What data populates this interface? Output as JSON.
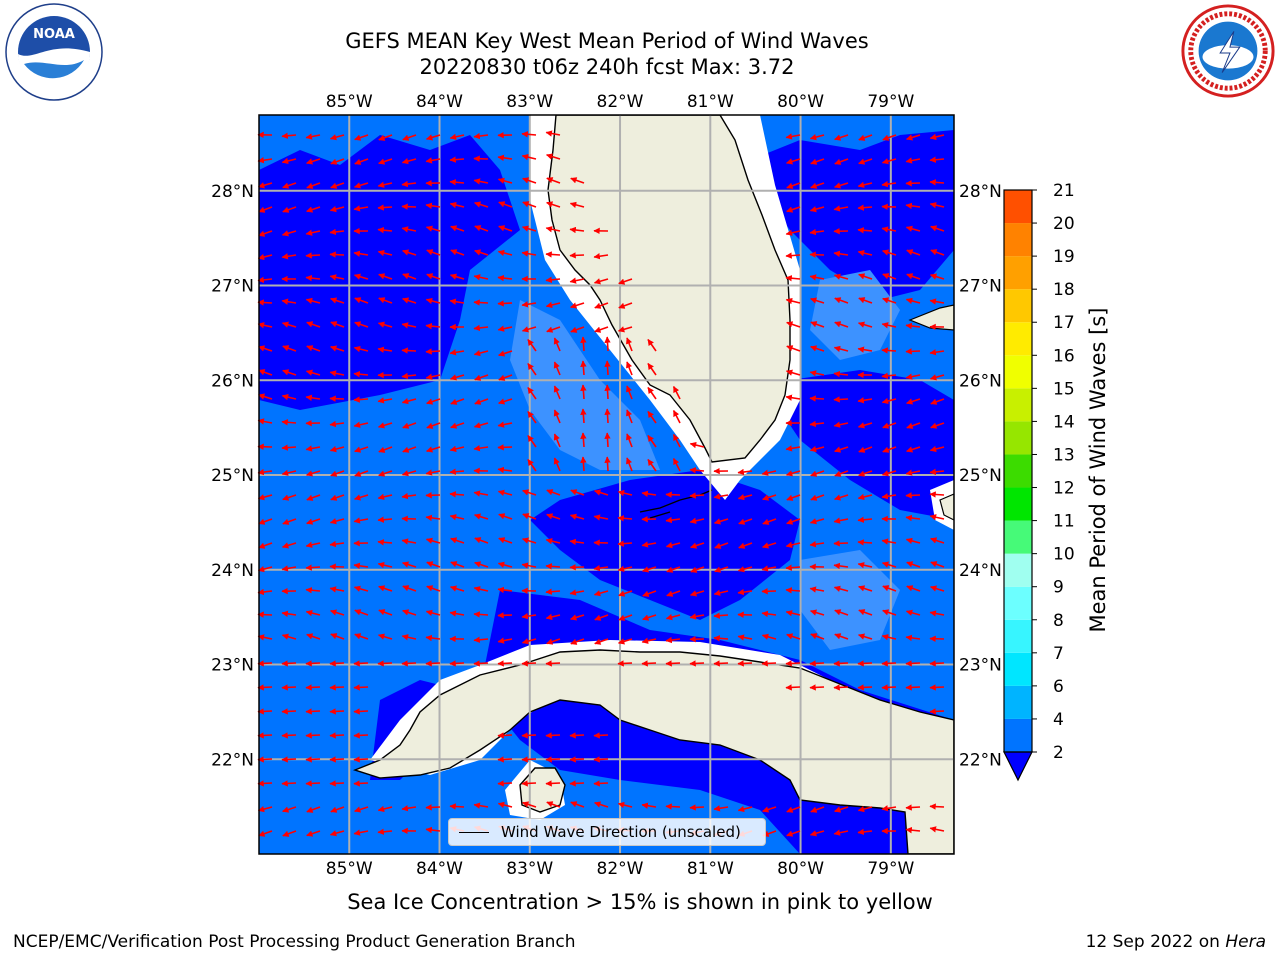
{
  "title": {
    "line1": "GEFS MEAN Key West Mean Period of Wind Waves",
    "line2": "20220830 t06z 240h fcst   Max: 3.72"
  },
  "map": {
    "lon_range": [
      -86,
      -78.3
    ],
    "lat_range": [
      21.0,
      28.8
    ],
    "lon_ticks": [
      {
        "value": -85,
        "label": "85°W"
      },
      {
        "value": -84,
        "label": "84°W"
      },
      {
        "value": -83,
        "label": "83°W"
      },
      {
        "value": -82,
        "label": "82°W"
      },
      {
        "value": -81,
        "label": "81°W"
      },
      {
        "value": -80,
        "label": "80°W"
      },
      {
        "value": -79,
        "label": "79°W"
      }
    ],
    "lat_ticks": [
      {
        "value": 28,
        "label": "28°N"
      },
      {
        "value": 27,
        "label": "27°N"
      },
      {
        "value": 26,
        "label": "26°N"
      },
      {
        "value": 25,
        "label": "25°N"
      },
      {
        "value": 24,
        "label": "24°N"
      },
      {
        "value": 23,
        "label": "23°N"
      },
      {
        "value": 22,
        "label": "22°N"
      }
    ],
    "colors": {
      "land": "#eeeedd",
      "coast": "#000000",
      "grid": "#b0b0b0",
      "arrow": "#ff0000",
      "period_2_4": "#0074ff",
      "period_lt_2": "#0000ff",
      "missing": "#ffffff",
      "ocean_light": "#3d92ff"
    },
    "legend_label": "Wind Wave Direction (unscaled)"
  },
  "colorbar": {
    "label": "Mean Period of Wind Waves [s]",
    "levels": [
      2,
      4,
      6,
      7,
      8,
      9,
      10,
      11,
      12,
      13,
      14,
      15,
      16,
      17,
      18,
      19,
      20,
      21
    ],
    "tick_labels": [
      "2",
      "4",
      "6",
      "7",
      "8",
      "9",
      "10",
      "11",
      "12",
      "13",
      "14",
      "15",
      "16",
      "17",
      "18",
      "19",
      "20",
      "21"
    ],
    "colors": [
      "#0074ff",
      "#00b4ff",
      "#00e6ff",
      "#37f5ff",
      "#6cffff",
      "#a0fff0",
      "#46fa78",
      "#00e600",
      "#3cdc00",
      "#96e600",
      "#c8f000",
      "#f0ff00",
      "#ffeb00",
      "#ffc800",
      "#ffa000",
      "#ff8200",
      "#ff5000",
      "#ff2800",
      "#ff0000"
    ],
    "under_color": "#0000ff"
  },
  "footer": {
    "note": "Sea Ice Concentration > 15% is shown in pink to yellow",
    "left": "NCEP/EMC/Verification Post Processing Product Generation Branch",
    "date": "12 Sep 2022 on ",
    "host": "Hera"
  }
}
